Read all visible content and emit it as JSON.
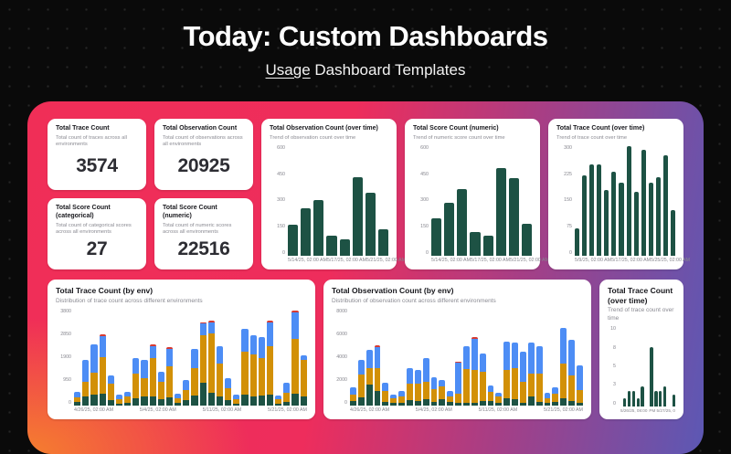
{
  "page": {
    "title": "Today: Custom Dashboards",
    "subtitle_link": "Usage",
    "subtitle_rest": " Dashboard Templates"
  },
  "colors": {
    "background": "#0a0a0a",
    "panel_gradient_left": "#f02e57",
    "panel_gradient_right": "#5c58b4",
    "panel_gradient_bottom_left": "#f5832c",
    "card_background": "#ffffff",
    "bar_teal": "#1d5244",
    "bar_orange": "#d29007",
    "bar_blue": "#4d8df5",
    "bar_red": "#d73a32"
  },
  "stats": [
    {
      "title": "Total Trace Count",
      "subtitle": "Total count of traces across all environments",
      "value": "3574"
    },
    {
      "title": "Total Observation Count",
      "subtitle": "Total count of observations across all environments",
      "value": "20925"
    },
    {
      "title": "Total Score Count (categorical)",
      "subtitle": "Total count of categorical scores across all environments",
      "value": "27"
    },
    {
      "title": "Total Score Count (numeric)",
      "subtitle": "Total count of numeric scores across all environments",
      "value": "22516"
    }
  ],
  "charts": {
    "obs_over_time": {
      "type": "bar",
      "title": "Total Observation Count (over time)",
      "subtitle": "Trend of observation count over time",
      "ymax": 600,
      "yticks": [
        "600",
        "450",
        "300",
        "150",
        "0"
      ],
      "values": [
        170,
        260,
        305,
        110,
        90,
        430,
        345,
        145
      ],
      "xlabels": [
        "5/14/25, 02:00 AM",
        "5/17/25, 02:00 AM",
        "5/21/25, 02:00 AM"
      ],
      "colors": [
        "#1d5244"
      ]
    },
    "score_numeric_over_time": {
      "type": "bar",
      "title": "Total Score Count (numeric)",
      "subtitle": "Trend of numeric score count over time",
      "ymax": 600,
      "yticks": [
        "600",
        "450",
        "300",
        "150",
        "0"
      ],
      "values": [
        205,
        290,
        365,
        130,
        110,
        480,
        425,
        175
      ],
      "xlabels": [
        "5/14/25, 02:00 AM",
        "5/17/25, 02:00 AM",
        "5/21/25, 02:00 AM"
      ],
      "colors": [
        "#1d5244"
      ]
    },
    "trace_over_time": {
      "type": "bar",
      "title": "Total Trace Count (over time)",
      "subtitle": "Trend of trace count over time",
      "ymax": 300,
      "yticks": [
        "300",
        "225",
        "150",
        "75",
        "0"
      ],
      "values": [
        75,
        220,
        250,
        250,
        180,
        230,
        200,
        300,
        175,
        290,
        200,
        215,
        275,
        125
      ],
      "xlabels": [
        "5/9/25, 02:00 AM",
        "5/17/25, 02:00 AM",
        "5/25/25, 02:00 AM"
      ],
      "colors": [
        "#1d5244"
      ]
    },
    "trace_by_env": {
      "type": "bar",
      "stacked": true,
      "title": "Total Trace Count (by env)",
      "subtitle": "Distribution of trace count across different environments",
      "ymax": 3800,
      "yticks": [
        "3800",
        "2850",
        "1900",
        "950",
        "0"
      ],
      "stack_colors": [
        "#1d5244",
        "#d29007",
        "#4d8df5",
        "#d73a32"
      ],
      "bars": [
        [
          150,
          180,
          230,
          0
        ],
        [
          350,
          600,
          850,
          0
        ],
        [
          450,
          850,
          1120,
          0
        ],
        [
          470,
          1450,
          830,
          70
        ],
        [
          220,
          640,
          320,
          0
        ],
        [
          80,
          180,
          160,
          0
        ],
        [
          120,
          240,
          200,
          0
        ],
        [
          300,
          950,
          650,
          0
        ],
        [
          350,
          750,
          700,
          0
        ],
        [
          380,
          1520,
          470,
          60
        ],
        [
          250,
          700,
          400,
          0
        ],
        [
          320,
          1250,
          680,
          60
        ],
        [
          100,
          200,
          180,
          0
        ],
        [
          200,
          420,
          400,
          0
        ],
        [
          400,
          1100,
          750,
          0
        ],
        [
          900,
          1900,
          450,
          60
        ],
        [
          500,
          2350,
          450,
          60
        ],
        [
          350,
          1300,
          700,
          0
        ],
        [
          200,
          500,
          400,
          0
        ],
        [
          90,
          180,
          150,
          0
        ],
        [
          450,
          1700,
          900,
          0
        ],
        [
          380,
          1650,
          770,
          0
        ],
        [
          400,
          1500,
          800,
          0
        ],
        [
          420,
          1950,
          930,
          60
        ],
        [
          80,
          160,
          160,
          0
        ],
        [
          150,
          350,
          400,
          0
        ],
        [
          480,
          2150,
          1050,
          80
        ],
        [
          350,
          1450,
          180,
          0
        ]
      ],
      "xlabels": [
        "4/26/25, 02:00 AM",
        "5/4/25, 02:00 AM",
        "5/11/25, 02:00 AM",
        "5/21/25, 02:00 AM"
      ]
    },
    "obs_by_env": {
      "type": "bar",
      "stacked": true,
      "title": "Total Observation Count (by env)",
      "subtitle": "Distribution of observation count across different environments",
      "ymax": 8000,
      "yticks": [
        "8000",
        "6000",
        "4000",
        "2000",
        "0"
      ],
      "stack_colors": [
        "#1d5244",
        "#d29007",
        "#4d8df5",
        "#d73a32"
      ],
      "bars": [
        [
          350,
          600,
          550,
          0
        ],
        [
          700,
          1900,
          1200,
          0
        ],
        [
          1750,
          1400,
          1500,
          0
        ],
        [
          1250,
          1850,
          1800,
          100
        ],
        [
          300,
          900,
          700,
          0
        ],
        [
          200,
          450,
          300,
          0
        ],
        [
          250,
          500,
          500,
          0
        ],
        [
          450,
          1350,
          1300,
          0
        ],
        [
          350,
          1450,
          1150,
          0
        ],
        [
          500,
          1500,
          2000,
          0
        ],
        [
          300,
          1100,
          950,
          0
        ],
        [
          500,
          1100,
          500,
          0
        ],
        [
          300,
          500,
          400,
          0
        ],
        [
          200,
          800,
          2600,
          100
        ],
        [
          250,
          2800,
          1900,
          0
        ],
        [
          250,
          2750,
          2600,
          100
        ],
        [
          400,
          2450,
          1500,
          0
        ],
        [
          350,
          800,
          500,
          0
        ],
        [
          250,
          500,
          350,
          0
        ],
        [
          600,
          2400,
          2350,
          0
        ],
        [
          500,
          2600,
          2150,
          0
        ],
        [
          250,
          1750,
          2500,
          0
        ],
        [
          750,
          1950,
          2550,
          0
        ],
        [
          300,
          2400,
          2250,
          0
        ],
        [
          200,
          400,
          450,
          0
        ],
        [
          300,
          700,
          500,
          0
        ],
        [
          600,
          2900,
          3000,
          0
        ],
        [
          400,
          2100,
          3000,
          0
        ],
        [
          200,
          1100,
          2050,
          0
        ]
      ],
      "xlabels": [
        "4/26/25, 02:00 AM",
        "5/4/25, 02:00 AM",
        "5/11/25, 02:00 AM",
        "5/21/25, 02:00 AM"
      ]
    },
    "trace_over_time_small": {
      "type": "bar",
      "title": "Total Trace Count (over time)",
      "subtitle": "Trend of trace count over time",
      "ymax": 10,
      "yticks": [
        "10",
        "8",
        "5",
        "3",
        "0"
      ],
      "values": [
        0,
        1,
        2,
        2,
        1,
        2.5,
        0,
        7.5,
        2,
        2,
        2.5,
        0,
        1.5
      ],
      "xlabels": [
        "5/26/25, 08:00",
        "PM 5/27/25, 0"
      ],
      "colors": [
        "#1d5244"
      ]
    }
  }
}
